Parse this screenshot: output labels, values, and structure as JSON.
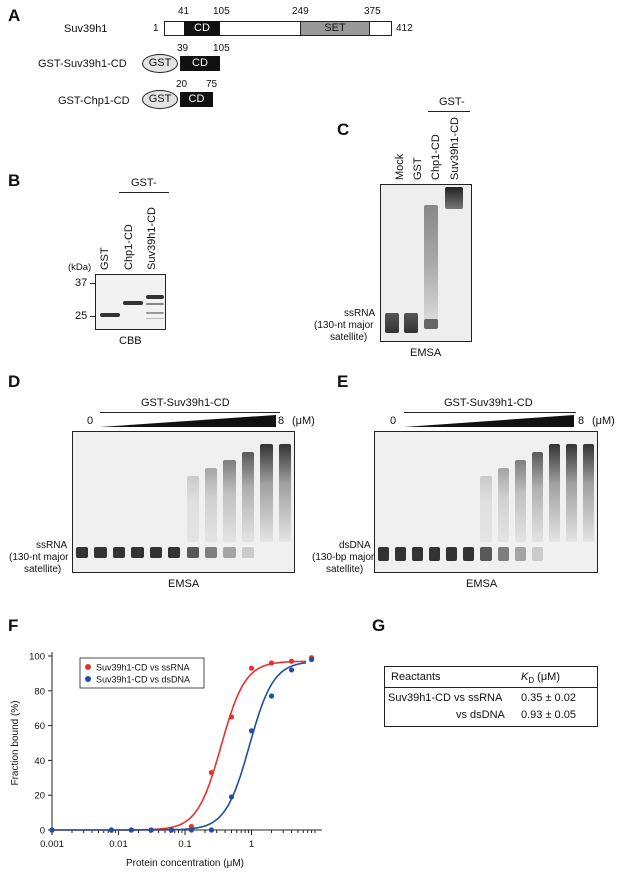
{
  "panels": {
    "a": "A",
    "b": "B",
    "c": "C",
    "d": "D",
    "e": "E",
    "f": "F",
    "g": "G"
  },
  "panel_a": {
    "rows": [
      {
        "label": "Suv39h1",
        "start": "1",
        "end": "412",
        "cd_start": "41",
        "cd_end": "105",
        "set_start": "249",
        "set_end": "375",
        "cd": "CD",
        "set": "SET"
      },
      {
        "label": "GST-Suv39h1-CD",
        "gst": "GST",
        "cd": "CD",
        "cd_start": "39",
        "cd_end": "105"
      },
      {
        "label": "GST-Chp1-CD",
        "gst": "GST",
        "cd": "CD",
        "cd_start": "20",
        "cd_end": "75"
      }
    ]
  },
  "panel_b": {
    "group": "GST-",
    "lanes": [
      "GST",
      "Chp1-CD",
      "Suv39h1-CD"
    ],
    "unit": "(kDa)",
    "markers": [
      "37",
      "25"
    ],
    "caption": "CBB"
  },
  "panel_c": {
    "group": "GST-",
    "lanes": [
      "Mock",
      "GST",
      "Chp1-CD",
      "Suv39h1-CD"
    ],
    "probe_label": [
      "ssRNA",
      "(130-nt major",
      "satellite)"
    ],
    "caption": "EMSA"
  },
  "panel_d": {
    "title": "GST-Suv39h1-CD",
    "min": "0",
    "max": "8",
    "unit": "(μM)",
    "probe_label": [
      "ssRNA",
      "(130-nt major",
      "satellite)"
    ],
    "caption": "EMSA"
  },
  "panel_e": {
    "title": "GST-Suv39h1-CD",
    "min": "0",
    "max": "8",
    "unit": "(μM)",
    "probe_label": [
      "dsDNA",
      "(130-bp major",
      "satellite)"
    ],
    "caption": "EMSA"
  },
  "panel_g": {
    "headers": [
      "Reactants",
      "K",
      "D",
      " (μM)"
    ],
    "rows": [
      {
        "reactant": "Suv39h1-CD vs ssRNA",
        "kd": "0.35 ± 0.02"
      },
      {
        "reactant": "vs dsDNA",
        "kd": "0.93 ± 0.05"
      }
    ]
  },
  "chart_data": {
    "type": "scatter",
    "xlabel": "Protein concentration (μM)",
    "ylabel": "Fraction bound (%)",
    "xscale": "log",
    "xlim": [
      0.001,
      10
    ],
    "ylim": [
      0,
      100
    ],
    "xticks": [
      "0.001",
      "0.01",
      "0.1",
      "1"
    ],
    "yticks": [
      "0",
      "20",
      "40",
      "60",
      "80",
      "100"
    ],
    "legend_position": "top-left",
    "series": [
      {
        "name": "Suv39h1-CD vs ssRNA",
        "color": "#e8312f",
        "x": [
          0.001,
          0.0078,
          0.0156,
          0.031,
          0.0625,
          0.125,
          0.25,
          0.5,
          1,
          2,
          4,
          8
        ],
        "y": [
          0,
          0,
          0,
          0,
          0,
          2,
          33,
          65,
          93,
          96,
          97,
          99
        ],
        "fit_kd": 0.35
      },
      {
        "name": "Suv39h1-CD vs dsDNA",
        "color": "#1f4fa3",
        "x": [
          0.001,
          0.0078,
          0.0156,
          0.031,
          0.0625,
          0.125,
          0.25,
          0.5,
          1,
          2,
          4,
          8
        ],
        "y": [
          0,
          0,
          0,
          0,
          0,
          0,
          0,
          19,
          57,
          77,
          92,
          98
        ],
        "fit_kd": 0.93
      }
    ]
  }
}
